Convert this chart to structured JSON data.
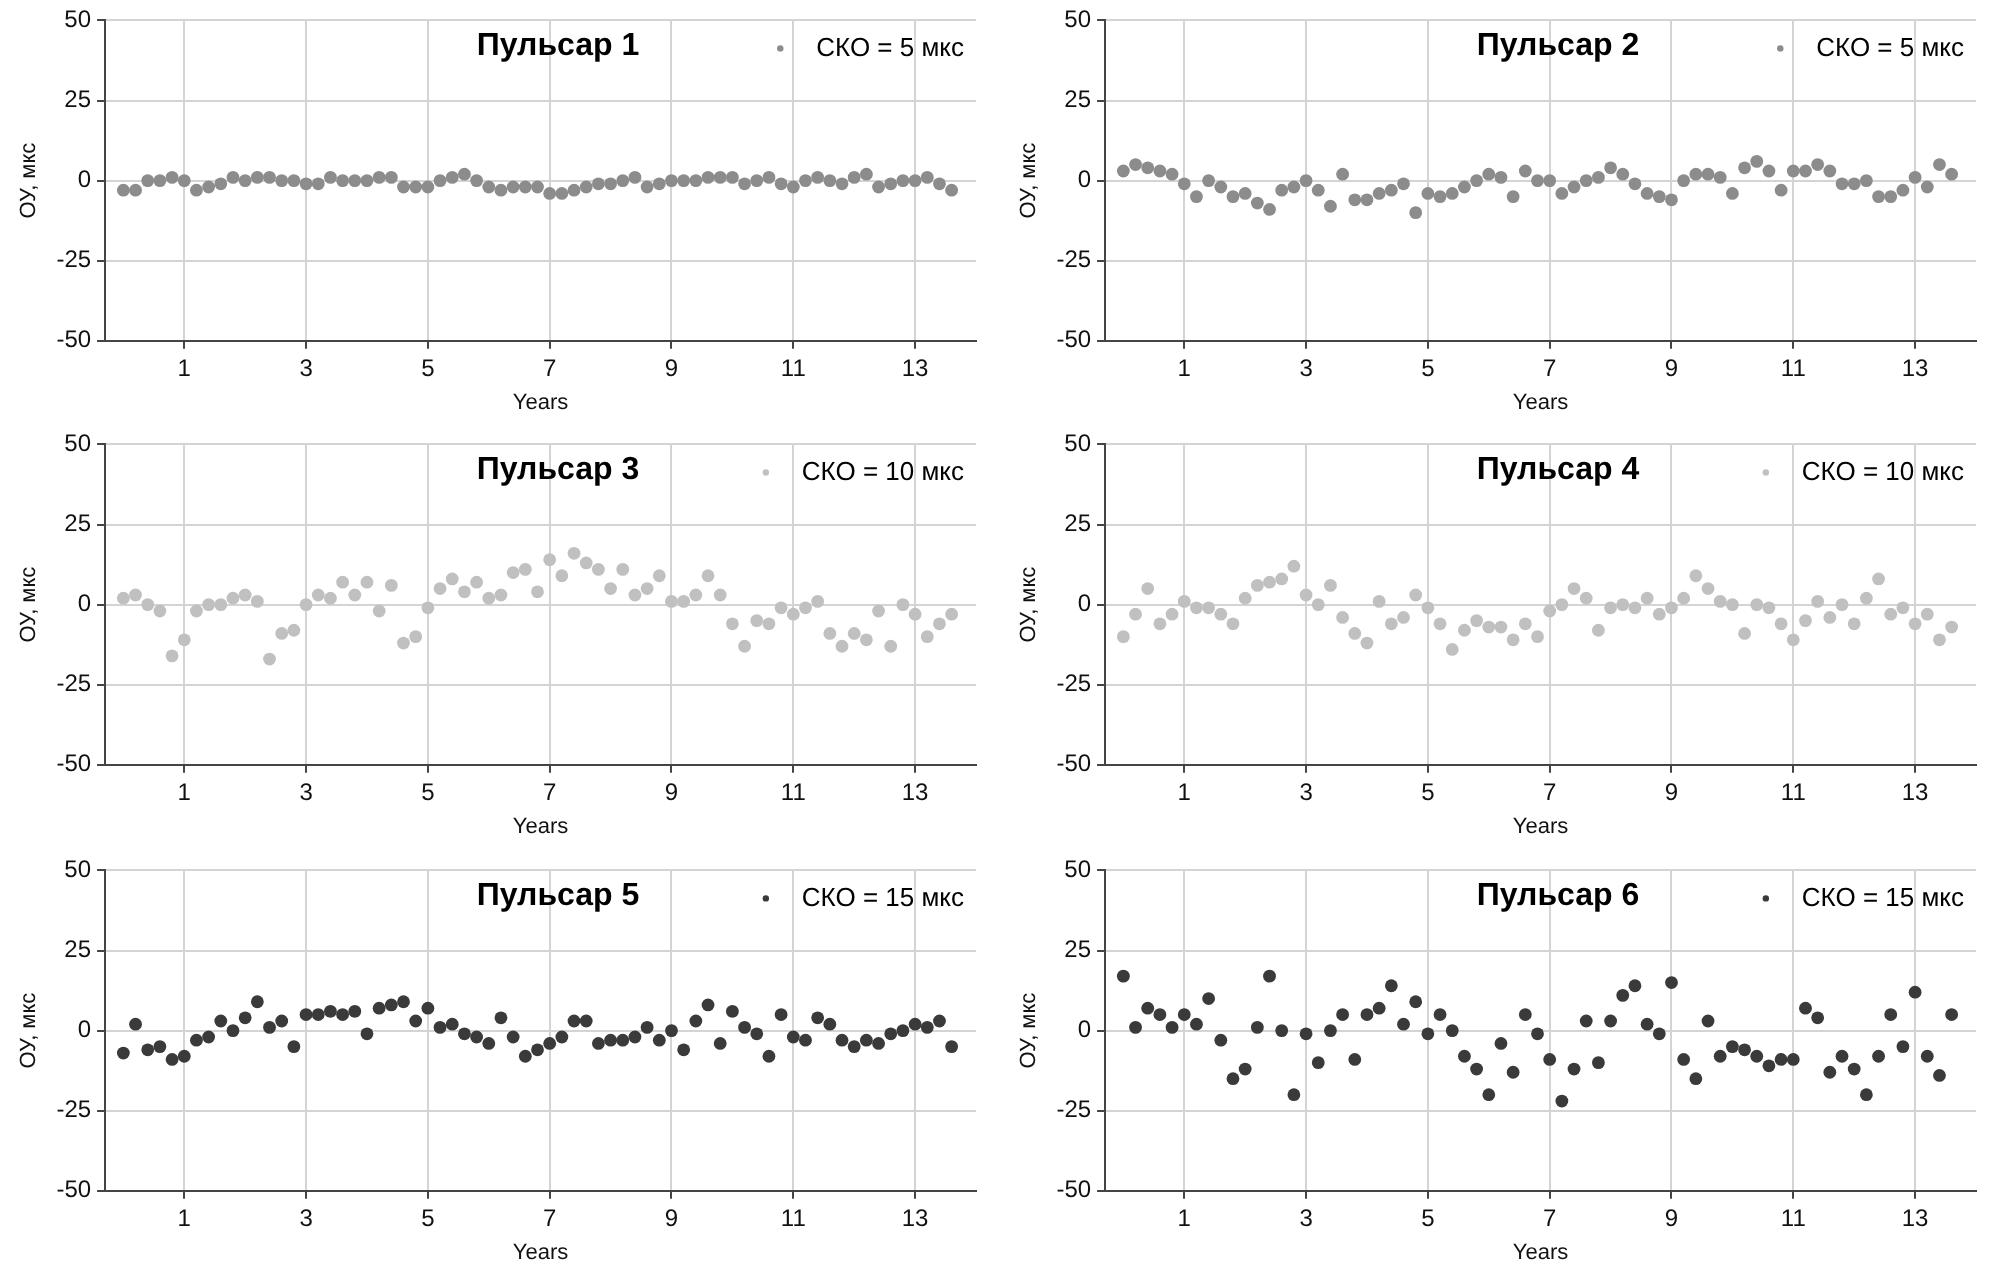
{
  "chart_data": [
    {
      "type": "scatter",
      "title": "Пульсар 1",
      "xlabel": "Years",
      "ylabel": "ОУ, мкс",
      "xlim": [
        -0.3,
        14
      ],
      "xticks": [
        1,
        3,
        5,
        7,
        9,
        11,
        13
      ],
      "ylim": [
        -50,
        50
      ],
      "yticks": [
        -50,
        -25,
        0,
        25,
        50
      ],
      "grid": true,
      "legend": "top right",
      "marker": "circle",
      "x": [
        0,
        0.2,
        0.4,
        0.6,
        0.8,
        1,
        1.2,
        1.4,
        1.6,
        1.8,
        2,
        2.2,
        2.4,
        2.6,
        2.8,
        3,
        3.2,
        3.4,
        3.6,
        3.8,
        4,
        4.2,
        4.4,
        4.6,
        4.8,
        5,
        5.2,
        5.4,
        5.6,
        5.8,
        6,
        6.2,
        6.4,
        6.6,
        6.8,
        7,
        7.2,
        7.4,
        7.6,
        7.8,
        8,
        8.2,
        8.4,
        8.6,
        8.8,
        9,
        9.2,
        9.4,
        9.6,
        9.8,
        10,
        10.2,
        10.4,
        10.6,
        10.8,
        11,
        11.2,
        11.4,
        11.6,
        11.8,
        12,
        12.2,
        12.4,
        12.6,
        12.8,
        13,
        13.2,
        13.4,
        13.6
      ],
      "series": [
        {
          "name": "СКО = 5 мкс",
          "color": "#8c8c8c",
          "values": [
            -3,
            -3,
            0,
            0,
            1,
            0,
            -3,
            -2,
            -1,
            1,
            0,
            1,
            1,
            0,
            0,
            -1,
            -1,
            1,
            0,
            0,
            0,
            1,
            1,
            -2,
            -2,
            -2,
            0,
            1,
            2,
            0,
            -2,
            -3,
            -2,
            -2,
            -2,
            -4,
            -4,
            -3,
            -2,
            -1,
            -1,
            0,
            1,
            -2,
            -1,
            0,
            0,
            0,
            1,
            1,
            1,
            -1,
            0,
            1,
            -1,
            -2,
            0,
            1,
            0,
            -1,
            1,
            2,
            -2,
            -1,
            0,
            0,
            1,
            -1,
            -3
          ]
        }
      ]
    },
    {
      "type": "scatter",
      "title": "Пульсар 2",
      "xlabel": "Years",
      "ylabel": "ОУ, мкс",
      "xlim": [
        -0.3,
        14
      ],
      "xticks": [
        1,
        3,
        5,
        7,
        9,
        11,
        13
      ],
      "ylim": [
        -50,
        50
      ],
      "yticks": [
        -50,
        -25,
        0,
        25,
        50
      ],
      "grid": true,
      "legend": "top right",
      "marker": "circle",
      "x": [
        0,
        0.2,
        0.4,
        0.6,
        0.8,
        1,
        1.2,
        1.4,
        1.6,
        1.8,
        2,
        2.2,
        2.4,
        2.6,
        2.8,
        3,
        3.2,
        3.4,
        3.6,
        3.8,
        4,
        4.2,
        4.4,
        4.6,
        4.8,
        5,
        5.2,
        5.4,
        5.6,
        5.8,
        6,
        6.2,
        6.4,
        6.6,
        6.8,
        7,
        7.2,
        7.4,
        7.6,
        7.8,
        8,
        8.2,
        8.4,
        8.6,
        8.8,
        9,
        9.2,
        9.4,
        9.6,
        9.8,
        10,
        10.2,
        10.4,
        10.6,
        10.8,
        11,
        11.2,
        11.4,
        11.6,
        11.8,
        12,
        12.2,
        12.4,
        12.6,
        12.8,
        13,
        13.2,
        13.4,
        13.6
      ],
      "series": [
        {
          "name": "СКО = 5 мкс",
          "color": "#8c8c8c",
          "values": [
            3,
            5,
            4,
            3,
            2,
            -1,
            -5,
            0,
            -2,
            -5,
            -4,
            -7,
            -9,
            -3,
            -2,
            0,
            -3,
            -8,
            2,
            -6,
            -6,
            -4,
            -3,
            -1,
            -10,
            -4,
            -5,
            -4,
            -2,
            0,
            2,
            1,
            -5,
            3,
            0,
            0,
            -4,
            -2,
            0,
            1,
            4,
            2,
            -1,
            -4,
            -5,
            -6,
            0,
            2,
            2,
            1,
            -4,
            4,
            6,
            3,
            -3,
            3,
            3,
            5,
            3,
            -1,
            -1,
            0,
            -5,
            -5,
            -3,
            1,
            -2,
            5,
            2
          ]
        }
      ]
    },
    {
      "type": "scatter",
      "title": "Пульсар 3",
      "xlabel": "Years",
      "ylabel": "ОУ, мкс",
      "xlim": [
        -0.3,
        14
      ],
      "xticks": [
        1,
        3,
        5,
        7,
        9,
        11,
        13
      ],
      "ylim": [
        -50,
        50
      ],
      "yticks": [
        -50,
        -25,
        0,
        25,
        50
      ],
      "grid": true,
      "legend": "top right",
      "marker": "circle",
      "x": [
        0,
        0.2,
        0.4,
        0.6,
        0.8,
        1,
        1.2,
        1.4,
        1.6,
        1.8,
        2,
        2.2,
        2.4,
        2.6,
        2.8,
        3,
        3.2,
        3.4,
        3.6,
        3.8,
        4,
        4.2,
        4.4,
        4.6,
        4.8,
        5,
        5.2,
        5.4,
        5.6,
        5.8,
        6,
        6.2,
        6.4,
        6.6,
        6.8,
        7,
        7.2,
        7.4,
        7.6,
        7.8,
        8,
        8.2,
        8.4,
        8.6,
        8.8,
        9,
        9.2,
        9.4,
        9.6,
        9.8,
        10,
        10.2,
        10.4,
        10.6,
        10.8,
        11,
        11.2,
        11.4,
        11.6,
        11.8,
        12,
        12.2,
        12.4,
        12.6,
        12.8,
        13,
        13.2,
        13.4,
        13.6
      ],
      "series": [
        {
          "name": "СКО = 10 мкс",
          "color": "#c0c0c0",
          "values": [
            2,
            3,
            0,
            -2,
            -16,
            -11,
            -2,
            0,
            0,
            2,
            3,
            1,
            -17,
            -9,
            -8,
            0,
            3,
            2,
            7,
            3,
            7,
            -2,
            6,
            -12,
            -10,
            -1,
            5,
            8,
            4,
            7,
            2,
            3,
            10,
            11,
            4,
            14,
            9,
            16,
            13,
            11,
            5,
            11,
            3,
            5,
            9,
            1,
            1,
            3,
            9,
            3,
            -6,
            -13,
            -5,
            -6,
            -1,
            -3,
            -1,
            1,
            -9,
            -13,
            -9,
            -11,
            -2,
            -13,
            0,
            -3,
            -10,
            -6,
            -3
          ]
        }
      ]
    },
    {
      "type": "scatter",
      "title": "Пульсар 4",
      "xlabel": "Years",
      "ylabel": "ОУ, мкс",
      "xlim": [
        -0.3,
        14
      ],
      "xticks": [
        1,
        3,
        5,
        7,
        9,
        11,
        13
      ],
      "ylim": [
        -50,
        50
      ],
      "yticks": [
        -50,
        -25,
        0,
        25,
        50
      ],
      "grid": true,
      "legend": "top right",
      "marker": "circle",
      "x": [
        0,
        0.2,
        0.4,
        0.6,
        0.8,
        1,
        1.2,
        1.4,
        1.6,
        1.8,
        2,
        2.2,
        2.4,
        2.6,
        2.8,
        3,
        3.2,
        3.4,
        3.6,
        3.8,
        4,
        4.2,
        4.4,
        4.6,
        4.8,
        5,
        5.2,
        5.4,
        5.6,
        5.8,
        6,
        6.2,
        6.4,
        6.6,
        6.8,
        7,
        7.2,
        7.4,
        7.6,
        7.8,
        8,
        8.2,
        8.4,
        8.6,
        8.8,
        9,
        9.2,
        9.4,
        9.6,
        9.8,
        10,
        10.2,
        10.4,
        10.6,
        10.8,
        11,
        11.2,
        11.4,
        11.6,
        11.8,
        12,
        12.2,
        12.4,
        12.6,
        12.8,
        13,
        13.2,
        13.4,
        13.6
      ],
      "series": [
        {
          "name": "СКО = 10 мкс",
          "color": "#c0c0c0",
          "values": [
            -10,
            -3,
            5,
            -6,
            -3,
            1,
            -1,
            -1,
            -3,
            -6,
            2,
            6,
            7,
            8,
            12,
            3,
            0,
            6,
            -4,
            -9,
            -12,
            1,
            -6,
            -4,
            3,
            -1,
            -6,
            -14,
            -8,
            -5,
            -7,
            -7,
            -11,
            -6,
            -10,
            -2,
            0,
            5,
            2,
            -8,
            -1,
            0,
            -1,
            2,
            -3,
            -1,
            2,
            9,
            5,
            1,
            0,
            -9,
            0,
            -1,
            -6,
            -11,
            -5,
            1,
            -4,
            0,
            -6,
            2,
            8,
            -3,
            -1,
            -6,
            -3,
            -11,
            -7
          ]
        }
      ]
    },
    {
      "type": "scatter",
      "title": "Пульсар 5",
      "xlabel": "Years",
      "ylabel": "ОУ, мкс",
      "xlim": [
        -0.3,
        14
      ],
      "xticks": [
        1,
        3,
        5,
        7,
        9,
        11,
        13
      ],
      "ylim": [
        -50,
        50
      ],
      "yticks": [
        -50,
        -25,
        0,
        25,
        50
      ],
      "grid": true,
      "legend": "top right",
      "marker": "circle",
      "x": [
        0,
        0.2,
        0.4,
        0.6,
        0.8,
        1,
        1.2,
        1.4,
        1.6,
        1.8,
        2,
        2.2,
        2.4,
        2.6,
        2.8,
        3,
        3.2,
        3.4,
        3.6,
        3.8,
        4,
        4.2,
        4.4,
        4.6,
        4.8,
        5,
        5.2,
        5.4,
        5.6,
        5.8,
        6,
        6.2,
        6.4,
        6.6,
        6.8,
        7,
        7.2,
        7.4,
        7.6,
        7.8,
        8,
        8.2,
        8.4,
        8.6,
        8.8,
        9,
        9.2,
        9.4,
        9.6,
        9.8,
        10,
        10.2,
        10.4,
        10.6,
        10.8,
        11,
        11.2,
        11.4,
        11.6,
        11.8,
        12,
        12.2,
        12.4,
        12.6,
        12.8,
        13,
        13.2,
        13.4,
        13.6
      ],
      "series": [
        {
          "name": "СКО = 15 мкс",
          "color": "#3a3a3a",
          "values": [
            -7,
            2,
            -6,
            -5,
            -9,
            -8,
            -3,
            -2,
            3,
            0,
            4,
            9,
            1,
            3,
            -5,
            5,
            5,
            6,
            5,
            6,
            -1,
            7,
            8,
            9,
            3,
            7,
            1,
            2,
            -1,
            -2,
            -4,
            4,
            -2,
            -8,
            -6,
            -4,
            -2,
            3,
            3,
            -4,
            -3,
            -3,
            -2,
            1,
            -3,
            0,
            -6,
            3,
            8,
            -4,
            6,
            1,
            -1,
            -8,
            5,
            -2,
            -3,
            4,
            2,
            -3,
            -5,
            -3,
            -4,
            -1,
            0,
            2,
            1,
            3,
            -5
          ]
        }
      ]
    },
    {
      "type": "scatter",
      "title": "Пульсар 6",
      "xlabel": "Years",
      "ylabel": "ОУ, мкс",
      "xlim": [
        -0.3,
        14
      ],
      "xticks": [
        1,
        3,
        5,
        7,
        9,
        11,
        13
      ],
      "ylim": [
        -50,
        50
      ],
      "yticks": [
        -50,
        -25,
        0,
        25,
        50
      ],
      "grid": true,
      "legend": "top right",
      "marker": "circle",
      "x": [
        0,
        0.2,
        0.4,
        0.6,
        0.8,
        1,
        1.2,
        1.4,
        1.6,
        1.8,
        2,
        2.2,
        2.4,
        2.6,
        2.8,
        3,
        3.2,
        3.4,
        3.6,
        3.8,
        4,
        4.2,
        4.4,
        4.6,
        4.8,
        5,
        5.2,
        5.4,
        5.6,
        5.8,
        6,
        6.2,
        6.4,
        6.6,
        6.8,
        7,
        7.2,
        7.4,
        7.6,
        7.8,
        8,
        8.2,
        8.4,
        8.6,
        8.8,
        9,
        9.2,
        9.4,
        9.6,
        9.8,
        10,
        10.2,
        10.4,
        10.6,
        10.8,
        11,
        11.2,
        11.4,
        11.6,
        11.8,
        12,
        12.2,
        12.4,
        12.6,
        12.8,
        13,
        13.2,
        13.4,
        13.6
      ],
      "series": [
        {
          "name": "СКО = 15 мкс",
          "color": "#3a3a3a",
          "values": [
            17,
            1,
            7,
            5,
            1,
            5,
            2,
            10,
            -3,
            -15,
            -12,
            1,
            17,
            0,
            -20,
            -1,
            -10,
            0,
            5,
            -9,
            5,
            7,
            14,
            2,
            9,
            -1,
            5,
            0,
            -8,
            -12,
            -20,
            -4,
            -13,
            5,
            -1,
            -9,
            -22,
            -12,
            3,
            -10,
            3,
            11,
            14,
            2,
            -1,
            15,
            -9,
            -15,
            3,
            -8,
            -5,
            -6,
            -8,
            -11,
            -9,
            -9,
            7,
            4,
            -13,
            -8,
            -12,
            -20,
            -8,
            5,
            -5,
            12,
            -8,
            -14,
            5
          ]
        }
      ]
    }
  ]
}
